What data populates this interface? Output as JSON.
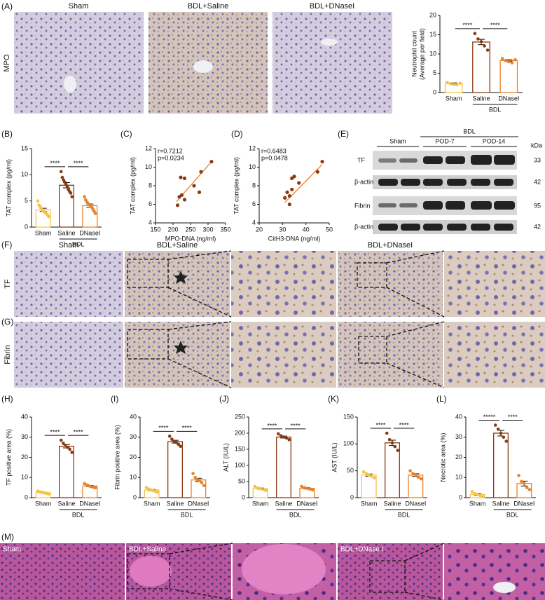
{
  "panel_labels": [
    "(A)",
    "(B)",
    "(C)",
    "(D)",
    "(E)",
    "(F)",
    "(G)",
    "(H)",
    "(I)",
    "(J)",
    "(K)",
    "(L)",
    "(M)"
  ],
  "mpo_images": {
    "columns": [
      "Sham",
      "BDL+Saline",
      "BDL+DNaseI"
    ],
    "row": "MPO"
  },
  "ihc_images": {
    "columns": [
      "Sham",
      "BDL+Saline",
      "BDL+DNaseI"
    ],
    "rows": [
      "TF",
      "Fibrin"
    ]
  },
  "he_images": {
    "labels": [
      "Sham",
      "BDL+Saline",
      "BDL+DNase I"
    ]
  },
  "blot": {
    "group": "BDL",
    "lanes": [
      "Sham",
      "POD-7",
      "POD-14"
    ],
    "unit": "kDa",
    "rows": [
      "TF",
      "β-actin",
      "Fibrin",
      "β-actin"
    ],
    "sizes": [
      33,
      42,
      95,
      42
    ]
  },
  "chart_data": [
    {
      "type": "bar",
      "ylabel": [
        "Neutrophil count",
        "(Average per field)"
      ],
      "categories": [
        "Sham",
        "Saline",
        "DNaseI"
      ],
      "group_label": "BDL",
      "colors": [
        "#f5c24a",
        "#8a3a12",
        "#e8822a"
      ],
      "values": [
        2.3,
        13.1,
        8.3
      ],
      "errors": [
        0.2,
        0.7,
        0.2
      ],
      "points": [
        [
          2.6,
          2.3,
          2.1,
          2.0,
          2.4
        ],
        [
          15.3,
          13.9,
          13.2,
          12.1,
          11.0
        ],
        [
          8.8,
          8.3,
          8.0,
          7.7,
          8.5
        ]
      ],
      "significance": [
        "****",
        "****"
      ],
      "ylim": [
        0,
        20
      ],
      "yticks": [
        0,
        5,
        10,
        15,
        20
      ]
    },
    {
      "type": "bar",
      "ylabel": "TAT complex (pg/ml)",
      "categories": [
        "Sham",
        "Saline",
        "DNaseI"
      ],
      "group_label": "BDL",
      "colors": [
        "#f5c24a",
        "#8a3a12",
        "#e8822a"
      ],
      "values": [
        3.3,
        8.0,
        4.1
      ],
      "errors": [
        0.3,
        0.5,
        0.3
      ],
      "points": [
        [
          5.0,
          4.2,
          3.9,
          3.5,
          3.2,
          3.0,
          2.8,
          2.6,
          2.4,
          2.0
        ],
        [
          10.6,
          9.5,
          9.0,
          8.6,
          8.2,
          7.8,
          7.2,
          6.8,
          6.5,
          5.8
        ],
        [
          5.8,
          5.2,
          4.8,
          4.5,
          4.3,
          4.0,
          3.8,
          3.4,
          3.0,
          2.6
        ]
      ],
      "significance": [
        "****",
        "****"
      ],
      "ylim": [
        0,
        15
      ],
      "yticks": [
        0,
        5,
        10,
        15
      ]
    },
    {
      "type": "scatter",
      "xlabel": "MPO-DNA (ng/ml)",
      "ylabel": "TAT complex (pg/ml)",
      "color": "#e8822a",
      "annotations": [
        "r=0.7212",
        "p=0.0234"
      ],
      "x": [
        213,
        218,
        225,
        222,
        233,
        233,
        260,
        275,
        280,
        310
      ],
      "values": [
        5.9,
        6.8,
        7.0,
        8.9,
        8.8,
        6.5,
        8.0,
        7.3,
        9.5,
        10.6
      ],
      "fit": {
        "x": [
          210,
          310
        ],
        "y": [
          6.3,
          10.6
        ]
      },
      "xlim": [
        150,
        350
      ],
      "xticks": [
        150,
        200,
        250,
        300,
        350
      ],
      "ylim": [
        4,
        12
      ],
      "yticks": [
        4,
        6,
        8,
        10,
        12
      ]
    },
    {
      "type": "scatter",
      "xlabel": "CitH3-DNA (ng/ml)",
      "ylabel": "TAT complex (pg/ml)",
      "color": "#e8822a",
      "annotations": [
        "r=0.6483",
        "p=0.0478"
      ],
      "x": [
        31,
        32,
        33,
        33,
        34,
        34,
        35,
        37,
        45,
        47
      ],
      "values": [
        6.7,
        7.3,
        6.9,
        6.0,
        7.6,
        8.8,
        9.0,
        8.3,
        9.5,
        10.6
      ],
      "fit": {
        "x": [
          31,
          47
        ],
        "y": [
          6.2,
          10.3
        ]
      },
      "xlim": [
        20,
        50
      ],
      "xticks": [
        20,
        30,
        40,
        50
      ],
      "ylim": [
        4,
        12
      ],
      "yticks": [
        4,
        6,
        8,
        10,
        12
      ]
    },
    {
      "type": "bar",
      "ylabel": "TF positive area (%)",
      "categories": [
        "Sham",
        "Saline",
        "DNaseI"
      ],
      "group_label": "BDL",
      "colors": [
        "#f5c24a",
        "#8a3a12",
        "#e8822a"
      ],
      "values": [
        2.5,
        25.5,
        5.8
      ],
      "errors": [
        0.2,
        0.8,
        0.3
      ],
      "points": [
        [
          3.3,
          2.9,
          2.6,
          2.4,
          2.1,
          1.8
        ],
        [
          28.5,
          27,
          26,
          25,
          24,
          22.5
        ],
        [
          7.0,
          6.3,
          5.9,
          5.5,
          5.2,
          4.9
        ]
      ],
      "significance": [
        "****",
        "****"
      ],
      "ylim": [
        0,
        40
      ],
      "yticks": [
        0,
        10,
        20,
        30,
        40
      ]
    },
    {
      "type": "bar",
      "ylabel": "Fibrin positive area (%)",
      "categories": [
        "Sham",
        "Saline",
        "DNaseI"
      ],
      "group_label": "BDL",
      "colors": [
        "#f5c24a",
        "#8a3a12",
        "#e8822a"
      ],
      "values": [
        3.8,
        27.8,
        8.8
      ],
      "errors": [
        0.3,
        0.7,
        0.8
      ],
      "points": [
        [
          5.0,
          4.3,
          3.9,
          3.6,
          3.2,
          2.8
        ],
        [
          30.5,
          29,
          28,
          27.5,
          26.5,
          25.5
        ],
        [
          12,
          10,
          9,
          8.5,
          7.5,
          6
        ]
      ],
      "significance": [
        "****",
        "****"
      ],
      "ylim": [
        0,
        40
      ],
      "yticks": [
        0,
        10,
        20,
        30,
        40
      ]
    },
    {
      "type": "bar",
      "ylabel": "ALT (IU/L)",
      "categories": [
        "Sham",
        "Saline",
        "DNaseI"
      ],
      "group_label": "BDL",
      "colors": [
        "#f5c24a",
        "#8a3a12",
        "#e8822a"
      ],
      "values": [
        28,
        188,
        29
      ],
      "errors": [
        2,
        3,
        2
      ],
      "points": [
        [
          35,
          30,
          28,
          25,
          22
        ],
        [
          198,
          192,
          188,
          185,
          180
        ],
        [
          35,
          31,
          29,
          27,
          24
        ]
      ],
      "significance": [
        "****",
        "****"
      ],
      "ylim": [
        0,
        250
      ],
      "yticks": [
        0,
        50,
        100,
        150,
        200,
        250
      ]
    },
    {
      "type": "bar",
      "ylabel": "AST (IU/L)",
      "categories": [
        "Sham",
        "Saline",
        "DNaseI"
      ],
      "group_label": "BDL",
      "colors": [
        "#f5c24a",
        "#8a3a12",
        "#e8822a"
      ],
      "values": [
        42,
        102,
        42
      ],
      "errors": [
        2,
        5,
        2.5
      ],
      "points": [
        [
          48,
          45,
          42,
          40,
          37
        ],
        [
          120,
          108,
          102,
          95,
          88
        ],
        [
          50,
          45,
          42,
          38,
          35
        ]
      ],
      "significance": [
        "****",
        "****"
      ],
      "ylim": [
        0,
        150
      ],
      "yticks": [
        0,
        50,
        100,
        150
      ]
    },
    {
      "type": "bar",
      "ylabel": "Necrotic area (%)",
      "categories": [
        "Sham",
        "Saline",
        "DNaseI"
      ],
      "group_label": "BDL",
      "colors": [
        "#f5c24a",
        "#8a3a12",
        "#e8822a"
      ],
      "values": [
        1.6,
        32,
        7
      ],
      "errors": [
        0.4,
        1.4,
        1.2
      ],
      "points": [
        [
          3.0,
          2.0,
          1.5,
          1.0,
          0.5
        ],
        [
          36,
          34,
          32,
          30,
          28
        ],
        [
          11,
          8,
          7,
          5,
          4
        ]
      ],
      "significance": [
        "*****",
        "****"
      ],
      "ylim": [
        0,
        40
      ],
      "yticks": [
        0,
        10,
        20,
        30,
        40
      ]
    }
  ]
}
